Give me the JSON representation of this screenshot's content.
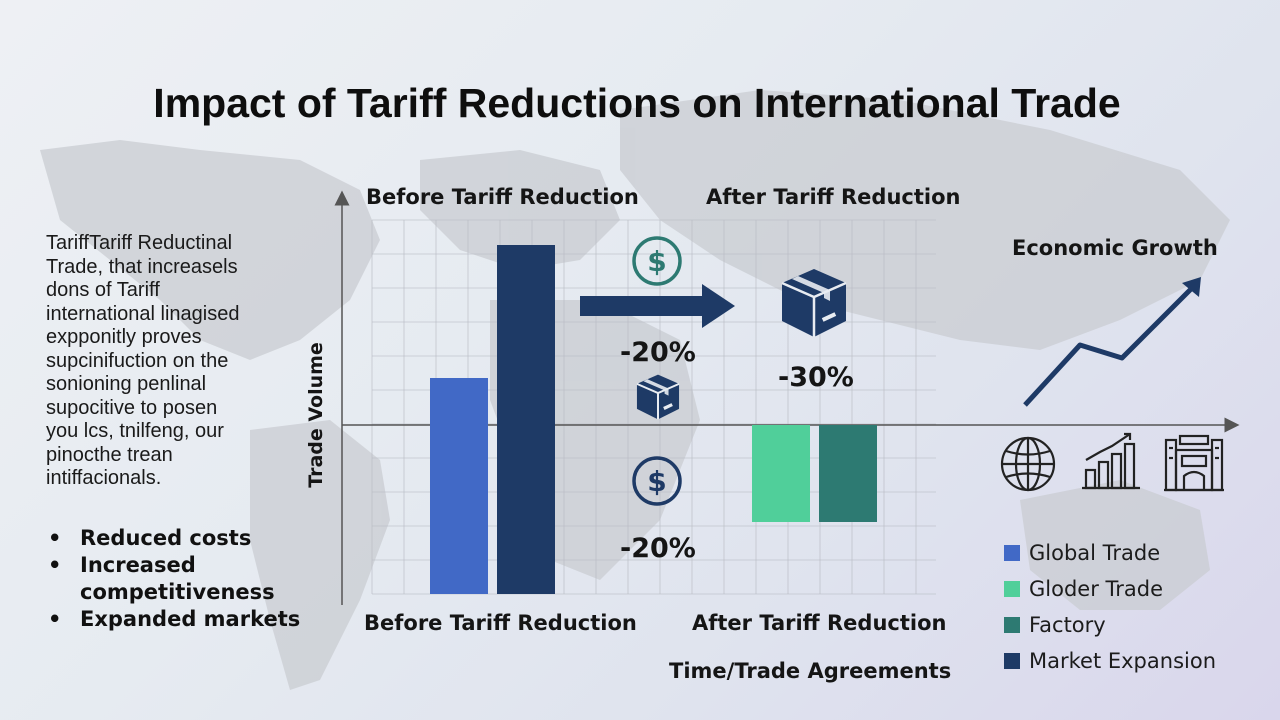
{
  "title": "Impact of Tariff Reductions on International Trade",
  "paragraph_lines": [
    "TariffTariff Reductinal",
    "Trade, that increasels",
    "dons of Tariff",
    "international linagised",
    "expponitly proves",
    "supcinifuction on the",
    "sonioning penlinal",
    "supocitive to posen",
    "you lcs, tnilfeng, our",
    "pinocthe trean",
    "intiffacionals."
  ],
  "bullets": [
    "Reduced costs",
    "Increased competitiveness",
    "Expanded markets"
  ],
  "growth_label": "Economic Growth",
  "colors": {
    "bar_blue": "#4169c6",
    "bar_navy": "#1e3a66",
    "bar_green": "#50cf9a",
    "bar_teal": "#2d7a72",
    "icon_navy": "#1e3a66"
  },
  "icons": [
    "dollar-icon",
    "package-icon",
    "globe-icon",
    "bar-chart-growth-icon",
    "factory-icon",
    "arrow-right-icon",
    "trend-up-icon"
  ],
  "chart_data": {
    "type": "bar",
    "title": "",
    "top_labels": [
      "Before Tariff Reduction",
      "After Tariff Reduction"
    ],
    "bottom_labels": [
      "Before Tariff Reduction",
      "After Tariff Reduction"
    ],
    "xlabel": "Time/Trade Agreements",
    "ylabel": "Trade Volume",
    "groups": [
      {
        "name": "Before Tariff Reduction",
        "bars": [
          {
            "value": 47,
            "color": "#4169c6"
          },
          {
            "value": 179,
            "color": "#1e3a66"
          }
        ]
      },
      {
        "name": "After Tariff Reduction",
        "bars": [
          {
            "value": -97,
            "color": "#50cf9a"
          },
          {
            "value": -97,
            "color": "#2d7a72"
          }
        ]
      }
    ],
    "ylim": [
      -180,
      235
    ],
    "annotations": [
      "-20%",
      "-30%",
      "-20%"
    ],
    "legend": [
      {
        "label": "Global Trade",
        "color": "#4169c6"
      },
      {
        "label": "Gloder Trade",
        "color": "#50cf9a"
      },
      {
        "label": "Factory",
        "color": "#2d7a72"
      },
      {
        "label": "Market Expansion",
        "color": "#1e3a66"
      }
    ],
    "grid": true
  }
}
